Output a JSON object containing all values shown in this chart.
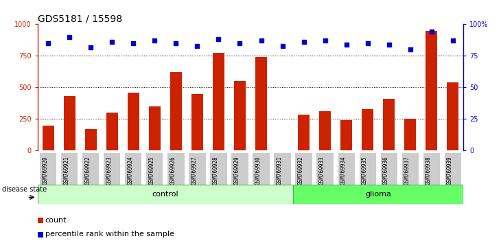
{
  "title": "GDS5181 / 15598",
  "samples": [
    "GSM769920",
    "GSM769921",
    "GSM769922",
    "GSM769923",
    "GSM769924",
    "GSM769925",
    "GSM769926",
    "GSM769927",
    "GSM769928",
    "GSM769929",
    "GSM769930",
    "GSM769931",
    "GSM769932",
    "GSM769933",
    "GSM769934",
    "GSM769935",
    "GSM769936",
    "GSM769937",
    "GSM769938",
    "GSM769939"
  ],
  "counts": [
    200,
    430,
    170,
    300,
    460,
    350,
    620,
    450,
    775,
    550,
    740,
    5,
    285,
    310,
    240,
    330,
    410,
    250,
    950,
    540
  ],
  "percentile_ranks": [
    85,
    90,
    82,
    86,
    85,
    87,
    85,
    83,
    88,
    85,
    87,
    83,
    86,
    87,
    84,
    85,
    84,
    80,
    94,
    87
  ],
  "n_control": 12,
  "n_glioma": 8,
  "bar_color": "#cc2200",
  "dot_color": "#0000cc",
  "ylim_left": [
    0,
    1000
  ],
  "ylim_right": [
    0,
    100
  ],
  "yticks_left": [
    0,
    250,
    500,
    750,
    1000
  ],
  "ytick_labels_left": [
    "0",
    "250",
    "500",
    "750",
    "1000"
  ],
  "yticks_right": [
    0,
    25,
    50,
    75,
    100
  ],
  "ytick_labels_right": [
    "0",
    "25",
    "50",
    "75",
    "100%"
  ],
  "control_label": "control",
  "glioma_label": "glioma",
  "disease_state_label": "disease state",
  "legend_count_label": "count",
  "legend_pct_label": "percentile rank within the sample",
  "control_bg": "#ccffcc",
  "glioma_bg": "#66ff66",
  "sample_bg": "#cccccc",
  "title_fontsize": 10,
  "tick_fontsize": 7,
  "bar_label_fontsize": 6,
  "group_label_fontsize": 8
}
